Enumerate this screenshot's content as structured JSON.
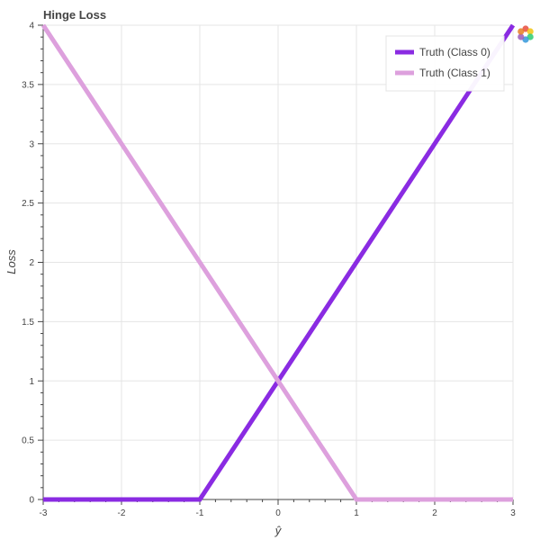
{
  "chart_data": {
    "type": "line",
    "title": "Hinge Loss",
    "xlabel": "ŷ",
    "ylabel": "Loss",
    "xlim": [
      -3,
      3
    ],
    "ylim": [
      0,
      4
    ],
    "xticks": [
      -3,
      -2,
      -1,
      0,
      1,
      2,
      3
    ],
    "yticks": [
      0,
      0.5,
      1,
      1.5,
      2,
      2.5,
      3,
      3.5,
      4
    ],
    "grid": true,
    "legend_position": "top-right",
    "series": [
      {
        "name": "Truth (Class 0)",
        "color": "#8a2be2",
        "x": [
          -3,
          -1,
          3
        ],
        "y": [
          0,
          0,
          4
        ]
      },
      {
        "name": "Truth (Class 1)",
        "color": "#dda0dd",
        "x": [
          -3,
          1,
          3
        ],
        "y": [
          4,
          0,
          0
        ]
      }
    ]
  },
  "toolbar": {
    "logo_icon": "bokeh-logo-icon"
  }
}
